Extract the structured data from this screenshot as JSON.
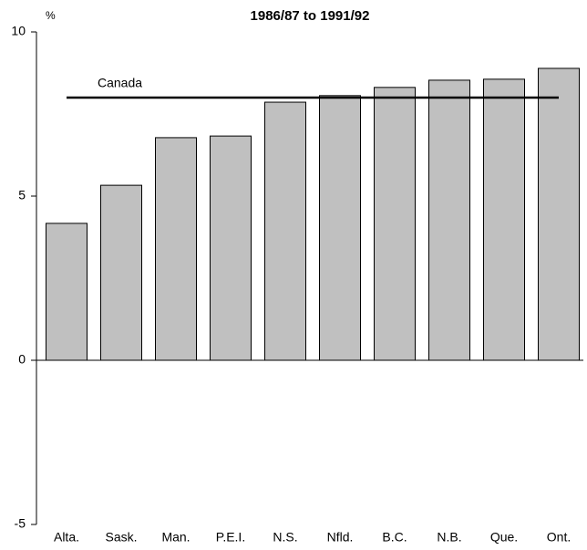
{
  "chart_data": {
    "type": "bar",
    "title": "1986/87 to 1991/92",
    "y_label": "%",
    "categories": [
      "Alta.",
      "Sask.",
      "Man.",
      "P.E.I.",
      "N.S.",
      "Nfld.",
      "B.C.",
      "N.B.",
      "Que.",
      "Ont."
    ],
    "values": [
      4.17,
      5.33,
      6.78,
      6.83,
      7.86,
      8.06,
      8.31,
      8.53,
      8.56,
      8.89
    ],
    "color": "#c0c0c0",
    "reference": {
      "label": "Canada",
      "value": 8.0
    },
    "ylim": [
      -5,
      10
    ],
    "yticks": [
      -5,
      0,
      5,
      10
    ],
    "grid": false
  }
}
